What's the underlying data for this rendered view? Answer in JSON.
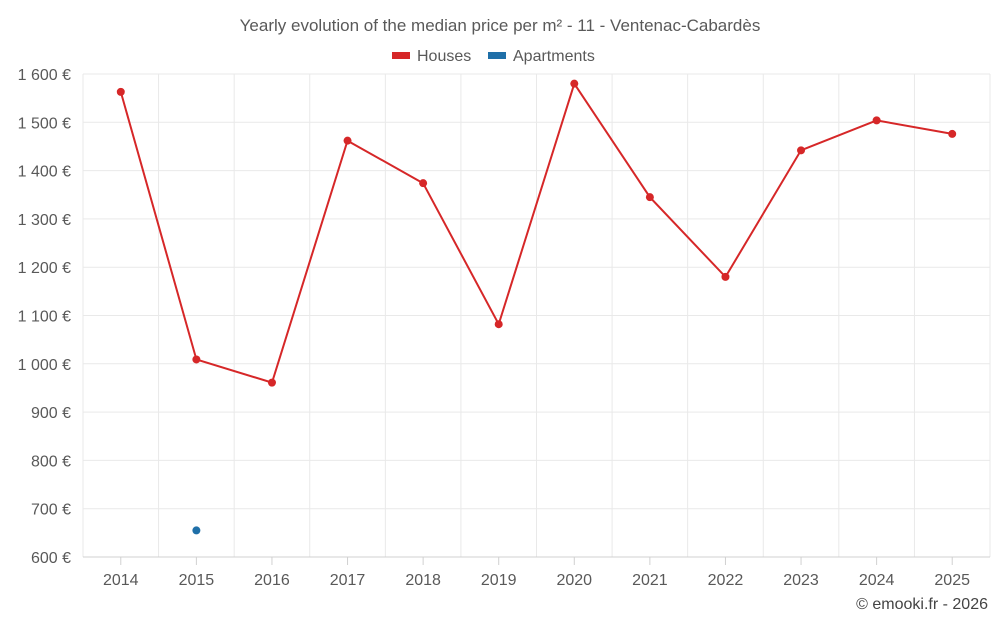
{
  "chart_data": {
    "type": "line",
    "title": "Yearly evolution of the median price per m² - 11 - Ventenac-Cabardès",
    "xlabel": "",
    "ylabel": "",
    "categories": [
      "2014",
      "2015",
      "2016",
      "2017",
      "2018",
      "2019",
      "2020",
      "2021",
      "2022",
      "2023",
      "2024",
      "2025"
    ],
    "ylim": [
      600,
      1600
    ],
    "yticks": [
      600,
      700,
      800,
      900,
      1000,
      1100,
      1200,
      1300,
      1400,
      1500,
      1600
    ],
    "ytick_labels": [
      "600 €",
      "700 €",
      "800 €",
      "900 €",
      "1 000 €",
      "1 100 €",
      "1 200 €",
      "1 300 €",
      "1 400 €",
      "1 500 €",
      "1 600 €"
    ],
    "grid": true,
    "legend_position": "top-center",
    "series": [
      {
        "name": "Houses",
        "color": "#d62728",
        "values": [
          1563,
          1009,
          961,
          1462,
          1374,
          1082,
          1580,
          1345,
          1180,
          1442,
          1504,
          1476
        ]
      },
      {
        "name": "Apartments",
        "color": "#1f6fa8",
        "values": [
          null,
          655,
          null,
          null,
          null,
          null,
          null,
          null,
          null,
          null,
          null,
          null
        ]
      }
    ]
  },
  "credit": "© emooki.fr - 2026"
}
